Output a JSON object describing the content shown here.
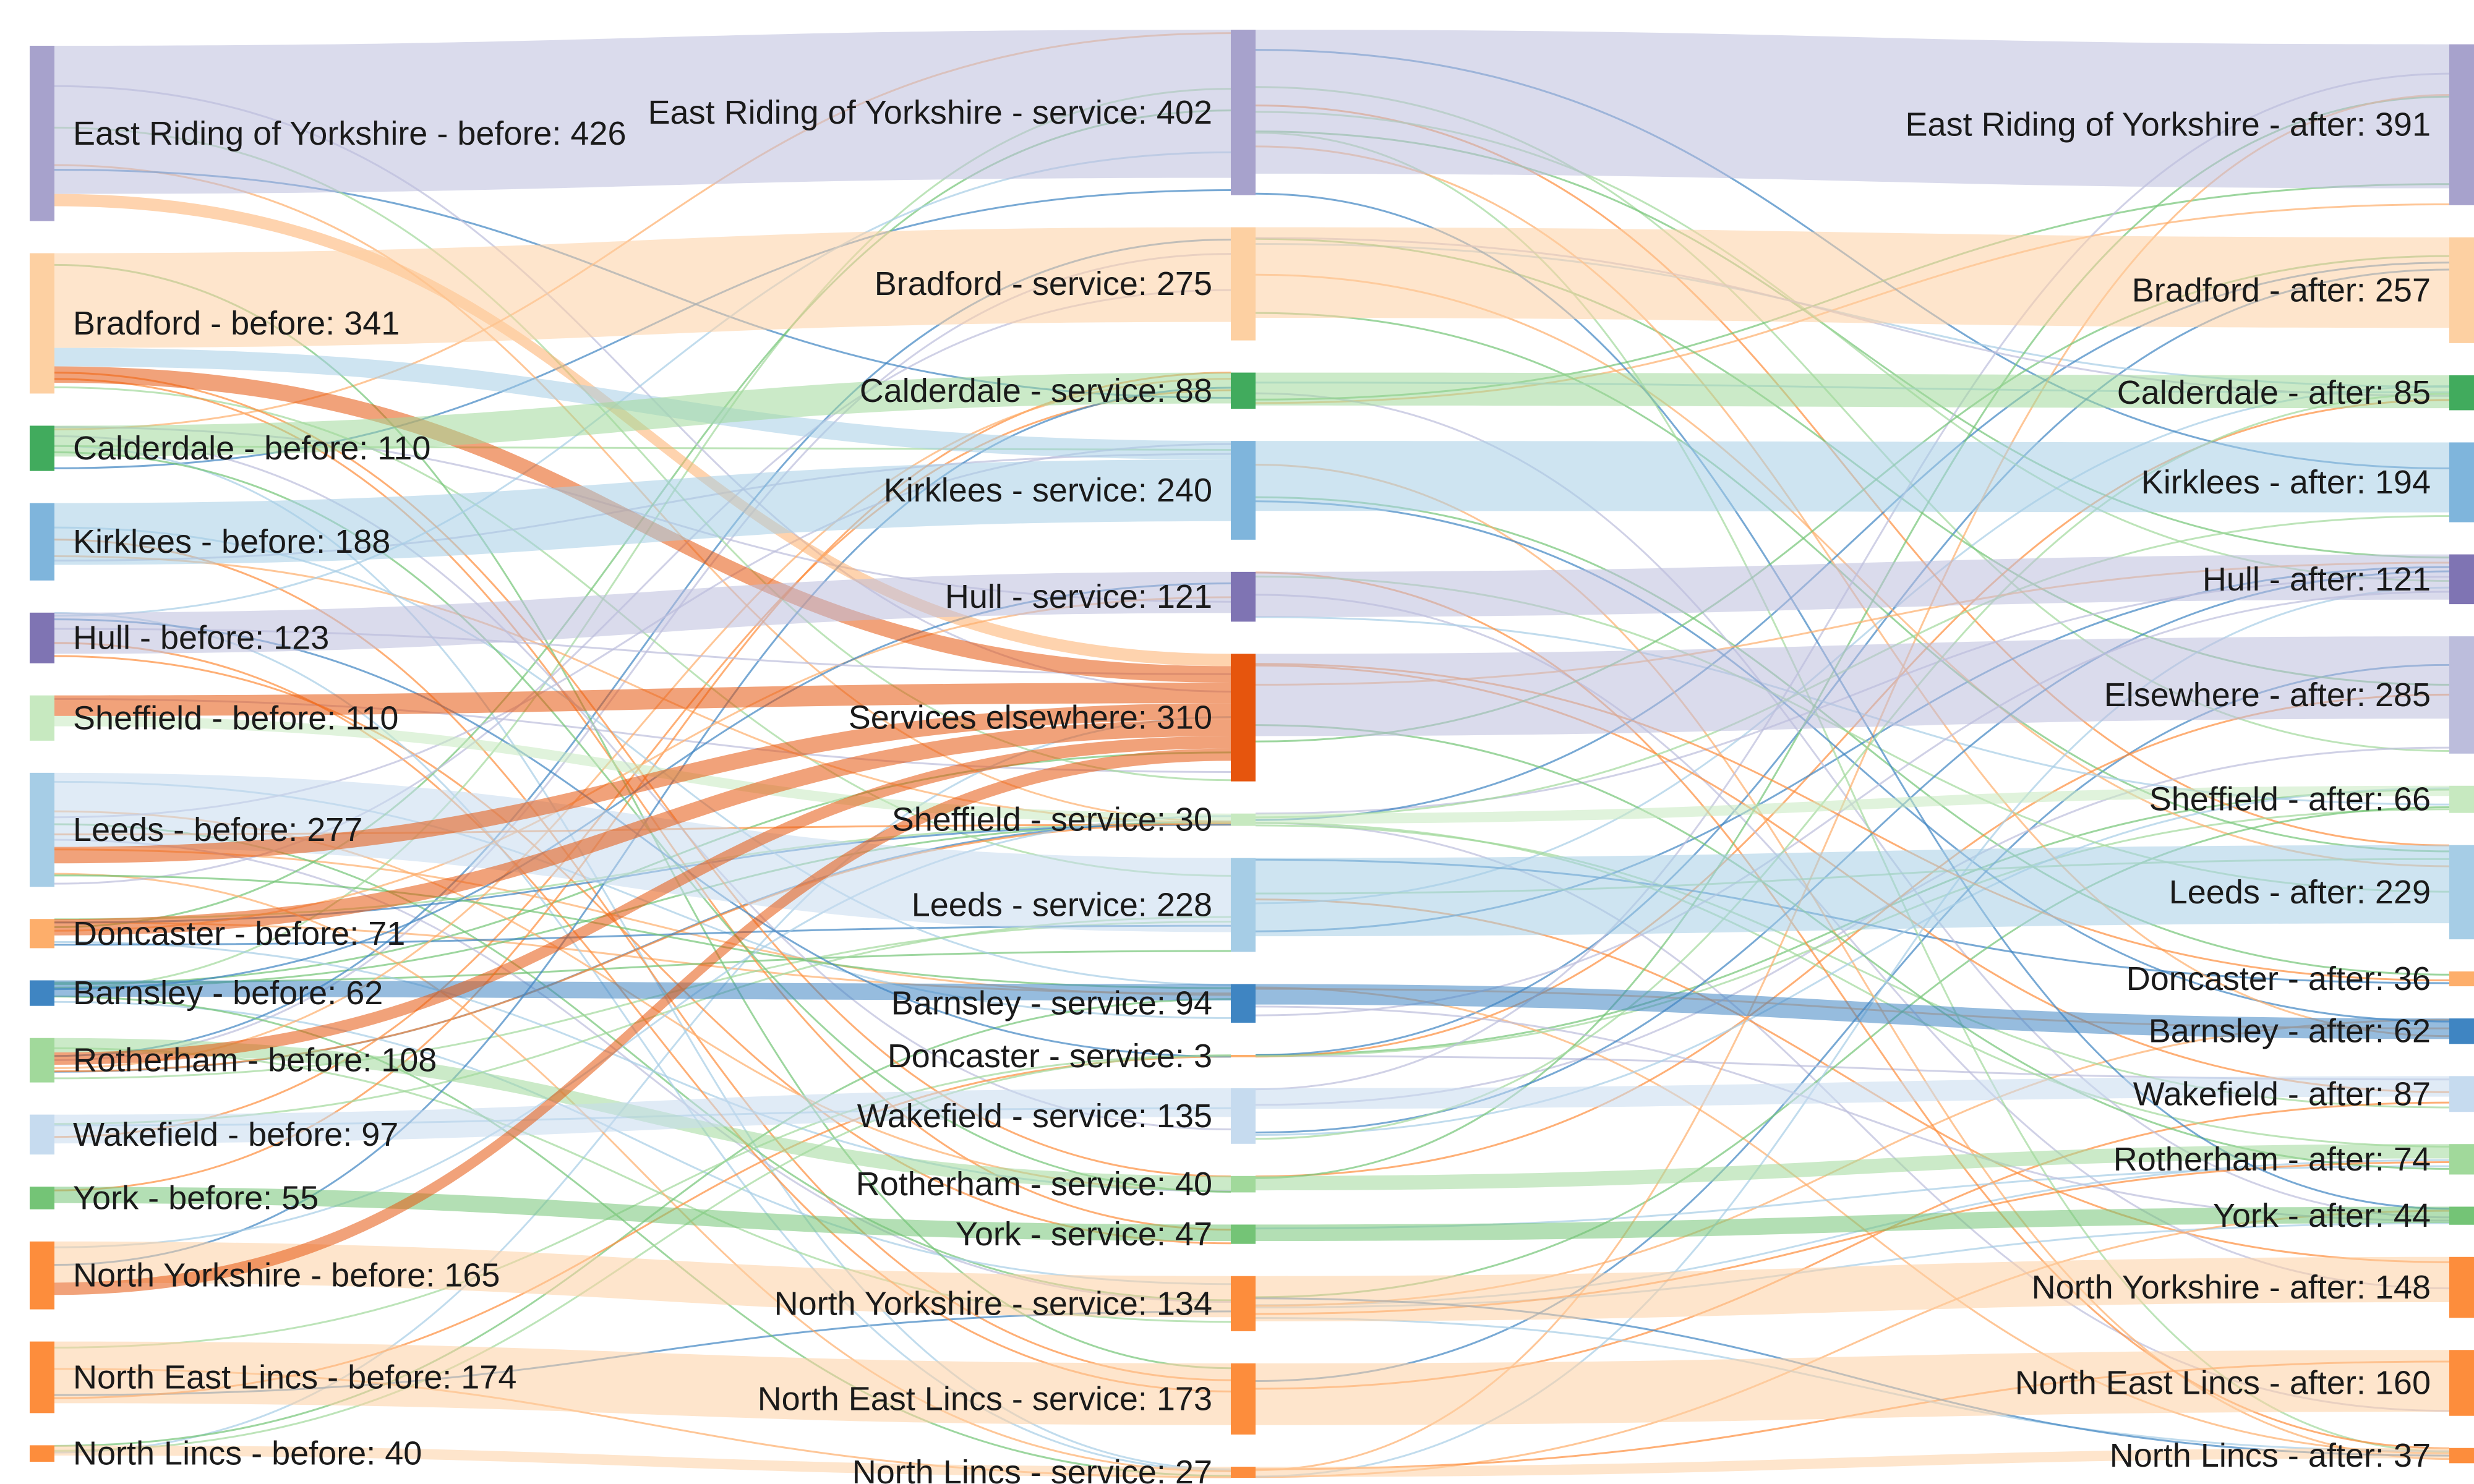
{
  "chart_data": {
    "type": "sankey",
    "columns": [
      [
        {
          "label": "East Riding of Yorkshire - before: 426",
          "value": 426,
          "color": "#a7a2cc"
        },
        {
          "label": "Bradford - before: 341",
          "value": 341,
          "color": "#fdd0a2"
        },
        {
          "label": "Calderdale - before: 110",
          "value": 110,
          "color": "#41ab5d"
        },
        {
          "label": "Kirklees - before: 188",
          "value": 188,
          "color": "#7fb5dc"
        },
        {
          "label": "Hull - before: 123",
          "value": 123,
          "color": "#7f74b3"
        },
        {
          "label": "Sheffield - before: 110",
          "value": 110,
          "color": "#c7e9c0"
        },
        {
          "label": "Leeds - before: 277",
          "value": 277,
          "color": "#a6cde6"
        },
        {
          "label": "Doncaster - before: 71",
          "value": 71,
          "color": "#fdae6b"
        },
        {
          "label": "Barnsley - before: 62",
          "value": 62,
          "color": "#3f85c2"
        },
        {
          "label": "Rotherham - before: 108",
          "value": 108,
          "color": "#a1d99b"
        },
        {
          "label": "Wakefield - before: 97",
          "value": 97,
          "color": "#c6dbef"
        },
        {
          "label": "York - before: 55",
          "value": 55,
          "color": "#74c476"
        },
        {
          "label": "North Yorkshire - before: 165",
          "value": 165,
          "color": "#fd8d3c"
        },
        {
          "label": "North East Lincs - before: 174",
          "value": 174,
          "color": "#fd8d3c"
        },
        {
          "label": "North Lincs - before: 40",
          "value": 40,
          "color": "#fd8d3c"
        }
      ],
      [
        {
          "label": "East Riding of Yorkshire - service: 402",
          "value": 402,
          "color": "#a7a2cc"
        },
        {
          "label": "Bradford - service: 275",
          "value": 275,
          "color": "#fdd0a2"
        },
        {
          "label": "Calderdale - service: 88",
          "value": 88,
          "color": "#41ab5d"
        },
        {
          "label": "Kirklees - service: 240",
          "value": 240,
          "color": "#7fb5dc"
        },
        {
          "label": "Hull - service: 121",
          "value": 121,
          "color": "#7f74b3"
        },
        {
          "label": "Services elsewhere: 310",
          "value": 310,
          "color": "#e6550d"
        },
        {
          "label": "Sheffield - service: 30",
          "value": 30,
          "color": "#c7e9c0"
        },
        {
          "label": "Leeds - service: 228",
          "value": 228,
          "color": "#a6cde6"
        },
        {
          "label": "Barnsley - service: 94",
          "value": 94,
          "color": "#3f85c2"
        },
        {
          "label": "Doncaster - service: 3",
          "value": 3,
          "color": "#fdae6b"
        },
        {
          "label": "Wakefield - service: 135",
          "value": 135,
          "color": "#c6dbef"
        },
        {
          "label": "Rotherham - service: 40",
          "value": 40,
          "color": "#a1d99b"
        },
        {
          "label": "York - service: 47",
          "value": 47,
          "color": "#74c476"
        },
        {
          "label": "North Yorkshire - service: 134",
          "value": 134,
          "color": "#fd8d3c"
        },
        {
          "label": "North East Lincs - service: 173",
          "value": 173,
          "color": "#fd8d3c"
        },
        {
          "label": "North Lincs - service: 27",
          "value": 27,
          "color": "#fd8d3c"
        }
      ],
      [
        {
          "label": "East Riding of Yorkshire - after: 391",
          "value": 391,
          "color": "#a7a2cc"
        },
        {
          "label": "Bradford - after: 257",
          "value": 257,
          "color": "#fdd0a2"
        },
        {
          "label": "Calderdale - after: 85",
          "value": 85,
          "color": "#41ab5d"
        },
        {
          "label": "Kirklees - after: 194",
          "value": 194,
          "color": "#7fb5dc"
        },
        {
          "label": "Hull - after: 121",
          "value": 121,
          "color": "#7f74b3"
        },
        {
          "label": "Elsewhere - after: 285",
          "value": 285,
          "color": "#bcbddc"
        },
        {
          "label": "Sheffield - after: 66",
          "value": 66,
          "color": "#c7e9c0"
        },
        {
          "label": "Leeds - after: 229",
          "value": 229,
          "color": "#a6cde6"
        },
        {
          "label": "Doncaster - after: 36",
          "value": 36,
          "color": "#fdae6b"
        },
        {
          "label": "Barnsley - after: 62",
          "value": 62,
          "color": "#3f85c2"
        },
        {
          "label": "Wakefield - after: 87",
          "value": 87,
          "color": "#c6dbef"
        },
        {
          "label": "Rotherham - after: 74",
          "value": 74,
          "color": "#a1d99b"
        },
        {
          "label": "York - after: 44",
          "value": 44,
          "color": "#74c476"
        },
        {
          "label": "North Yorkshire - after: 148",
          "value": 148,
          "color": "#fd8d3c"
        },
        {
          "label": "North East Lincs - after: 160",
          "value": 160,
          "color": "#fd8d3c"
        },
        {
          "label": "North Lincs - after: 37",
          "value": 37,
          "color": "#fd8d3c"
        }
      ]
    ],
    "links": [
      {
        "from": [
          0,
          0
        ],
        "to": [
          1,
          0
        ],
        "value": 360,
        "color": "#bcbddc"
      },
      {
        "from": [
          0,
          0
        ],
        "to": [
          1,
          5
        ],
        "value": 30,
        "color": "#fdae6b"
      },
      {
        "from": [
          0,
          1
        ],
        "to": [
          1,
          1
        ],
        "value": 230,
        "color": "#fdd0a2"
      },
      {
        "from": [
          0,
          1
        ],
        "to": [
          1,
          3
        ],
        "value": 45,
        "color": "#a6cde6"
      },
      {
        "from": [
          0,
          1
        ],
        "to": [
          1,
          5
        ],
        "value": 40,
        "color": "#e6550d"
      },
      {
        "from": [
          0,
          2
        ],
        "to": [
          1,
          2
        ],
        "value": 75,
        "color": "#a1d99b"
      },
      {
        "from": [
          0,
          3
        ],
        "to": [
          1,
          3
        ],
        "value": 150,
        "color": "#a6cde6"
      },
      {
        "from": [
          0,
          4
        ],
        "to": [
          1,
          4
        ],
        "value": 100,
        "color": "#bcbddc"
      },
      {
        "from": [
          0,
          5
        ],
        "to": [
          1,
          5
        ],
        "value": 50,
        "color": "#e6550d"
      },
      {
        "from": [
          0,
          5
        ],
        "to": [
          1,
          6
        ],
        "value": 25,
        "color": "#c7e9c0"
      },
      {
        "from": [
          0,
          6
        ],
        "to": [
          1,
          7
        ],
        "value": 180,
        "color": "#c6dbef"
      },
      {
        "from": [
          0,
          6
        ],
        "to": [
          1,
          5
        ],
        "value": 40,
        "color": "#e6550d"
      },
      {
        "from": [
          0,
          7
        ],
        "to": [
          1,
          5
        ],
        "value": 40,
        "color": "#e6550d"
      },
      {
        "from": [
          0,
          8
        ],
        "to": [
          1,
          8
        ],
        "value": 40,
        "color": "#3f85c2"
      },
      {
        "from": [
          0,
          9
        ],
        "to": [
          1,
          11
        ],
        "value": 35,
        "color": "#a1d99b"
      },
      {
        "from": [
          0,
          9
        ],
        "to": [
          1,
          5
        ],
        "value": 30,
        "color": "#e6550d"
      },
      {
        "from": [
          0,
          10
        ],
        "to": [
          1,
          10
        ],
        "value": 70,
        "color": "#c6dbef"
      },
      {
        "from": [
          0,
          11
        ],
        "to": [
          1,
          12
        ],
        "value": 40,
        "color": "#74c476"
      },
      {
        "from": [
          0,
          12
        ],
        "to": [
          1,
          13
        ],
        "value": 100,
        "color": "#fdd0a2"
      },
      {
        "from": [
          0,
          12
        ],
        "to": [
          1,
          5
        ],
        "value": 30,
        "color": "#e6550d"
      },
      {
        "from": [
          0,
          13
        ],
        "to": [
          1,
          14
        ],
        "value": 150,
        "color": "#fdd0a2"
      },
      {
        "from": [
          0,
          14
        ],
        "to": [
          1,
          15
        ],
        "value": 25,
        "color": "#fdd0a2"
      },
      {
        "from": [
          1,
          0
        ],
        "to": [
          2,
          0
        ],
        "value": 350,
        "color": "#bcbddc"
      },
      {
        "from": [
          1,
          1
        ],
        "to": [
          2,
          1
        ],
        "value": 220,
        "color": "#fdd0a2"
      },
      {
        "from": [
          1,
          2
        ],
        "to": [
          2,
          2
        ],
        "value": 80,
        "color": "#a1d99b"
      },
      {
        "from": [
          1,
          3
        ],
        "to": [
          2,
          3
        ],
        "value": 170,
        "color": "#a6cde6"
      },
      {
        "from": [
          1,
          4
        ],
        "to": [
          2,
          4
        ],
        "value": 110,
        "color": "#bcbddc"
      },
      {
        "from": [
          1,
          5
        ],
        "to": [
          2,
          5
        ],
        "value": 200,
        "color": "#bcbddc"
      },
      {
        "from": [
          1,
          6
        ],
        "to": [
          2,
          6
        ],
        "value": 25,
        "color": "#c7e9c0"
      },
      {
        "from": [
          1,
          7
        ],
        "to": [
          2,
          7
        ],
        "value": 190,
        "color": "#a6cde6"
      },
      {
        "from": [
          1,
          8
        ],
        "to": [
          2,
          9
        ],
        "value": 50,
        "color": "#3f85c2"
      },
      {
        "from": [
          1,
          10
        ],
        "to": [
          2,
          10
        ],
        "value": 50,
        "color": "#c6dbef"
      },
      {
        "from": [
          1,
          11
        ],
        "to": [
          2,
          11
        ],
        "value": 35,
        "color": "#a1d99b"
      },
      {
        "from": [
          1,
          12
        ],
        "to": [
          2,
          12
        ],
        "value": 40,
        "color": "#74c476"
      },
      {
        "from": [
          1,
          13
        ],
        "to": [
          2,
          13
        ],
        "value": 110,
        "color": "#fdd0a2"
      },
      {
        "from": [
          1,
          14
        ],
        "to": [
          2,
          14
        ],
        "value": 150,
        "color": "#fdd0a2"
      },
      {
        "from": [
          1,
          15
        ],
        "to": [
          2,
          15
        ],
        "value": 25,
        "color": "#fdd0a2"
      }
    ],
    "thin_link_colors": [
      "#fdae6b",
      "#a6cde6",
      "#74c476",
      "#bcbddc",
      "#fd8d3c",
      "#3f85c2",
      "#a1d99b"
    ]
  }
}
